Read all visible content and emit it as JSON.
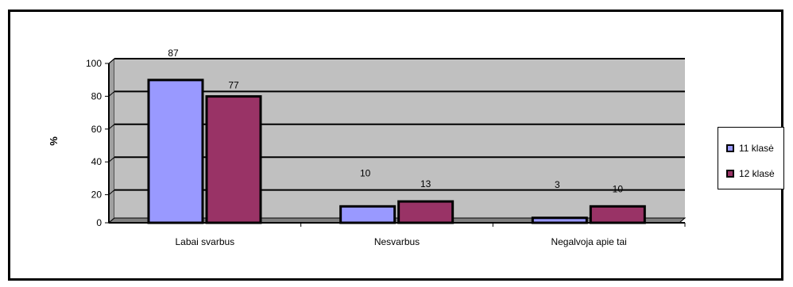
{
  "chart_data": {
    "type": "bar",
    "categories": [
      "Labai svarbus",
      "Nesvarbus",
      "Negalvoja apie tai"
    ],
    "series": [
      {
        "name": "11 klasė",
        "values": [
          87,
          10,
          3
        ],
        "color": "#9999ff"
      },
      {
        "name": "12 klasė",
        "values": [
          77,
          13,
          10
        ],
        "color": "#993366"
      }
    ],
    "ylabel": "%",
    "ylim": [
      0,
      100
    ],
    "yticks": [
      0,
      20,
      40,
      60,
      80,
      100
    ],
    "grid": true,
    "plot_background": "#c0c0c0",
    "legend_position": "right"
  }
}
